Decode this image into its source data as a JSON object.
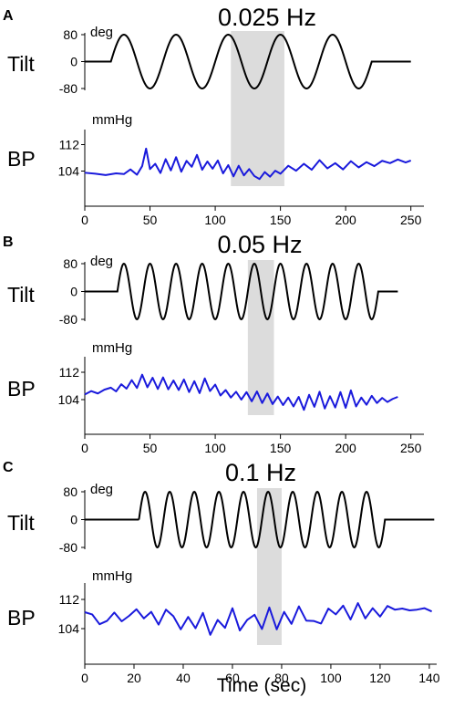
{
  "chart_data": [
    {
      "type": "line",
      "panel_label": "A",
      "title": "0.025 Hz",
      "frequency_hz": 0.025,
      "highlight_x": [
        112,
        153
      ],
      "shared_x_axis": {
        "ticks": [
          0,
          50,
          100,
          150,
          200,
          250
        ],
        "xlim": [
          0,
          260
        ],
        "xlabel": ""
      },
      "tilt": {
        "row_label": "Tilt",
        "unit": "deg",
        "ylim": [
          -80,
          80
        ],
        "y_ticks": [
          80,
          0,
          -80
        ],
        "flat_before": 20,
        "oscillation_start": 20,
        "oscillation_end": 220,
        "flat_until": 250,
        "amplitude": 80,
        "color": "#000000"
      },
      "bp": {
        "row_label": "BP",
        "unit": "mmHg",
        "ylim": [
          100,
          116
        ],
        "y_ticks": [
          112,
          104
        ],
        "color": "#1a1adc",
        "x": [
          0,
          8,
          16,
          24,
          30,
          35,
          40,
          44,
          47,
          50,
          54,
          58,
          62,
          66,
          70,
          74,
          78,
          82,
          86,
          90,
          94,
          98,
          102,
          106,
          110,
          114,
          118,
          122,
          126,
          130,
          134,
          138,
          142,
          146,
          150,
          156,
          162,
          168,
          174,
          180,
          186,
          192,
          198,
          204,
          210,
          216,
          222,
          228,
          234,
          240,
          246,
          250
        ],
        "values": [
          103.5,
          103.2,
          102.8,
          103.3,
          103.1,
          104.5,
          102.9,
          105.5,
          110.8,
          104.6,
          106.2,
          103.4,
          107.6,
          104.2,
          108.2,
          103.8,
          107.1,
          105.3,
          108.9,
          104.4,
          106.9,
          104.7,
          107.2,
          103.3,
          105.8,
          102.4,
          105.6,
          102.7,
          104.6,
          102.5,
          101.6,
          103.7,
          102.3,
          104.1,
          103.2,
          105.6,
          104.1,
          106.2,
          104.4,
          107.3,
          104.8,
          106.4,
          104.5,
          107.0,
          105.1,
          106.7,
          105.5,
          107.1,
          106.4,
          107.5,
          106.6,
          107.2
        ]
      }
    },
    {
      "type": "line",
      "panel_label": "B",
      "title": "0.05 Hz",
      "frequency_hz": 0.05,
      "highlight_x": [
        125,
        145
      ],
      "shared_x_axis": {
        "ticks": [
          0,
          50,
          100,
          150,
          200,
          250
        ],
        "xlim": [
          0,
          260
        ],
        "xlabel": ""
      },
      "tilt": {
        "row_label": "Tilt",
        "unit": "deg",
        "ylim": [
          -80,
          80
        ],
        "y_ticks": [
          80,
          0,
          -80
        ],
        "flat_before": 25,
        "oscillation_start": 25,
        "oscillation_end": 225,
        "flat_until": 240,
        "amplitude": 80,
        "color": "#000000"
      },
      "bp": {
        "row_label": "BP",
        "unit": "mmHg",
        "ylim": [
          100,
          116
        ],
        "y_ticks": [
          112,
          104
        ],
        "color": "#1a1adc",
        "x": [
          0,
          5,
          10,
          15,
          20,
          24,
          28,
          32,
          36,
          40,
          44,
          48,
          52,
          56,
          60,
          64,
          68,
          72,
          76,
          80,
          84,
          88,
          92,
          96,
          100,
          104,
          108,
          112,
          116,
          120,
          124,
          128,
          132,
          136,
          140,
          144,
          148,
          152,
          156,
          160,
          164,
          168,
          172,
          176,
          180,
          184,
          188,
          192,
          196,
          200,
          204,
          208,
          212,
          216,
          220,
          224,
          228,
          232,
          236,
          240
        ],
        "values": [
          105.5,
          106.5,
          105.8,
          106.9,
          107.5,
          106.4,
          108.5,
          107.2,
          109.7,
          107.4,
          111.3,
          107.6,
          110.4,
          107.1,
          110.5,
          107.0,
          109.6,
          106.8,
          109.9,
          106.2,
          109.4,
          105.9,
          110.2,
          106.5,
          108.4,
          105.2,
          106.8,
          104.6,
          106.3,
          104.0,
          106.2,
          103.5,
          106.4,
          103.0,
          105.8,
          102.7,
          104.9,
          102.4,
          104.6,
          102.0,
          104.8,
          101.0,
          105.4,
          101.9,
          106.3,
          101.4,
          105.0,
          101.7,
          106.2,
          101.6,
          106.7,
          102.0,
          104.6,
          102.5,
          105.1,
          103.0,
          104.5,
          103.3,
          104.2,
          104.8
        ]
      }
    },
    {
      "type": "line",
      "panel_label": "C",
      "title": "0.1 Hz",
      "frequency_hz": 0.1,
      "highlight_x": [
        70,
        80
      ],
      "shared_x_axis": {
        "ticks": [
          0,
          20,
          40,
          60,
          80,
          100,
          120,
          140
        ],
        "xlim": [
          0,
          143
        ],
        "xlabel": "Time (sec)"
      },
      "tilt": {
        "row_label": "Tilt",
        "unit": "deg",
        "ylim": [
          -80,
          80
        ],
        "y_ticks": [
          80,
          0,
          -80
        ],
        "flat_before": 22,
        "oscillation_start": 22,
        "oscillation_end": 122,
        "flat_until": 142,
        "amplitude": 80,
        "color": "#000000"
      },
      "bp": {
        "row_label": "BP",
        "unit": "mmHg",
        "ylim": [
          100,
          116
        ],
        "y_ticks": [
          112,
          104
        ],
        "color": "#1a1adc",
        "x": [
          0,
          3,
          6,
          9,
          12,
          15,
          18,
          21,
          24,
          27,
          30,
          33,
          36,
          39,
          42,
          45,
          48,
          51,
          54,
          57,
          60,
          63,
          66,
          69,
          72,
          75,
          78,
          81,
          84,
          87,
          90,
          93,
          96,
          99,
          102,
          105,
          108,
          111,
          114,
          117,
          120,
          123,
          126,
          129,
          132,
          135,
          138,
          141
        ],
        "values": [
          108.5,
          107.9,
          105.2,
          106.1,
          108.4,
          106.0,
          107.5,
          109.3,
          106.8,
          108.6,
          105.1,
          109.2,
          107.4,
          103.8,
          107.2,
          104.1,
          108.3,
          102.3,
          106.4,
          104.2,
          109.6,
          103.5,
          106.4,
          107.8,
          103.9,
          109.8,
          103.8,
          108.6,
          105.3,
          110.1,
          106.2,
          106.1,
          105.4,
          109.5,
          107.9,
          110.3,
          106.5,
          111.0,
          106.8,
          109.6,
          107.3,
          110.2,
          109.2,
          109.5,
          109.0,
          109.2,
          109.6,
          108.7
        ]
      }
    }
  ]
}
